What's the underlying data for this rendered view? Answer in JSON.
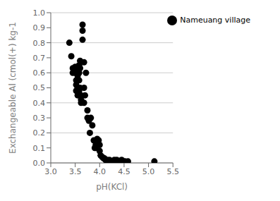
{
  "chart_data": {
    "type": "scatter",
    "xlabel": "pH(KCl)",
    "ylabel": "Exchangeable Al (cmol(+) kg-1",
    "x": [
      3.38,
      3.42,
      3.45,
      3.45,
      3.5,
      3.5,
      3.52,
      3.52,
      3.52,
      3.55,
      3.55,
      3.55,
      3.55,
      3.55,
      3.58,
      3.58,
      3.58,
      3.58,
      3.6,
      3.6,
      3.6,
      3.62,
      3.62,
      3.62,
      3.65,
      3.65,
      3.65,
      3.68,
      3.68,
      3.68,
      3.7,
      3.72,
      3.75,
      3.75,
      3.78,
      3.8,
      3.82,
      3.85,
      3.88,
      3.9,
      3.92,
      3.92,
      3.95,
      3.98,
      4.0,
      4.0,
      4.02,
      4.05,
      4.08,
      4.1,
      4.12,
      4.15,
      4.18,
      4.2,
      4.22,
      4.3,
      4.32,
      4.35,
      4.38,
      4.45,
      4.48,
      4.52,
      4.58,
      5.12
    ],
    "series": [
      {
        "name": "Nameuang village",
        "color": "#000000",
        "values": [
          0.8,
          0.71,
          0.63,
          0.6,
          0.64,
          0.6,
          0.55,
          0.52,
          0.48,
          0.62,
          0.58,
          0.55,
          0.5,
          0.45,
          0.65,
          0.6,
          0.55,
          0.48,
          0.68,
          0.63,
          0.5,
          0.45,
          0.42,
          0.4,
          0.92,
          0.88,
          0.82,
          0.67,
          0.5,
          0.4,
          0.45,
          0.6,
          0.35,
          0.3,
          0.28,
          0.2,
          0.3,
          0.25,
          0.15,
          0.1,
          0.12,
          0.1,
          0.16,
          0.15,
          0.12,
          0.08,
          0.05,
          0.04,
          0.03,
          0.03,
          0.02,
          0.02,
          0.01,
          0.02,
          0.01,
          0.02,
          0.01,
          0.02,
          0.01,
          0.02,
          0.01,
          0.01,
          0.01,
          0.01
        ]
      }
    ],
    "xlim": [
      3.0,
      5.5
    ],
    "ylim": [
      0.0,
      1.0
    ],
    "xticks": [
      {
        "value": 3.0,
        "label": "3.0"
      },
      3.5,
      {
        "value": 4.0,
        "label": "4.0"
      },
      4.5,
      {
        "value": 5.0,
        "label": "5.0"
      },
      5.5
    ],
    "yticks": [
      {
        "value": 0.0,
        "label": "0.0"
      },
      0.1,
      0.2,
      0.3,
      0.4,
      0.5,
      0.6,
      0.7,
      0.8,
      0.9,
      {
        "value": 1.0,
        "label": "1.0"
      }
    ],
    "grid": true,
    "legend": "upper right"
  }
}
